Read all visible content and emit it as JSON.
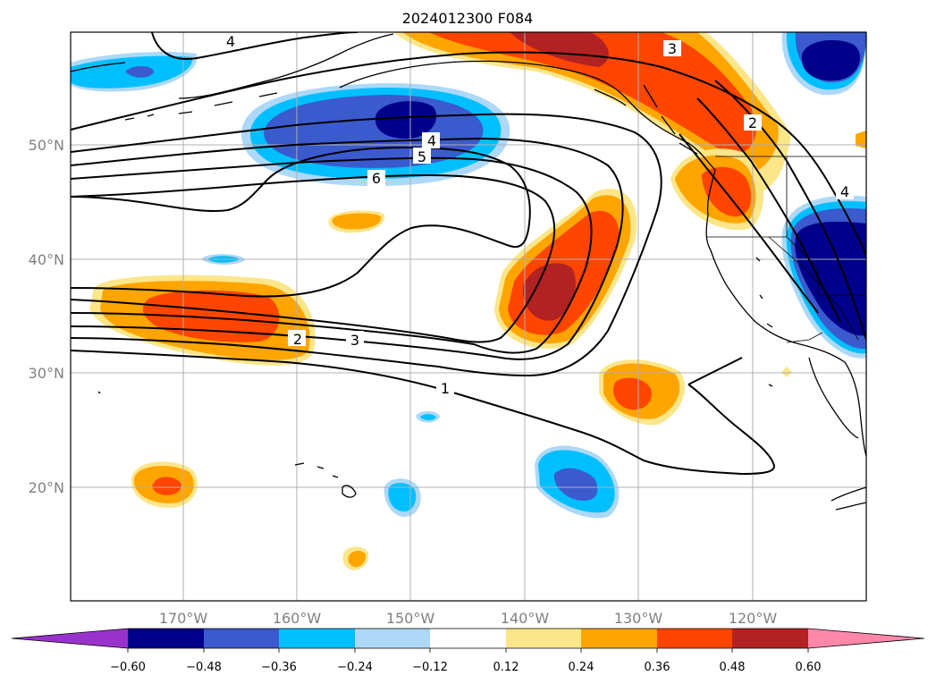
{
  "title": "2024012300 F084",
  "colors": {
    "neg_extend": "#9932cc",
    "neg_060": "#00008b",
    "neg_048": "#3a5acd",
    "neg_036": "#00bfff",
    "neg_024": "#add8f8",
    "neutral": "#ffffff",
    "pos_012": "#fce68a",
    "pos_024": "#ffa500",
    "pos_036": "#ff4500",
    "pos_048": "#b22222",
    "pos_extend": "#ff88aa",
    "contour": "#000000",
    "grid": "#b0b0b0",
    "axis_label": "#808080"
  },
  "lat_labels": [
    "50°N",
    "40°N",
    "30°N",
    "20°N"
  ],
  "lon_labels": [
    "170°W",
    "160°W",
    "150°W",
    "140°W",
    "130°W",
    "120°W"
  ],
  "colorbar_ticks": [
    "−0.60",
    "−0.48",
    "−0.36",
    "−0.24",
    "−0.12",
    "0.12",
    "0.24",
    "0.36",
    "0.48",
    "0.60"
  ],
  "contour_labels": [
    "4",
    "4",
    "5",
    "6",
    "3",
    "4",
    "2",
    "2",
    "3",
    "1"
  ]
}
